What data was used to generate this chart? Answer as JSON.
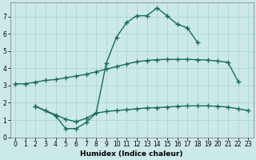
{
  "background_color": "#cce9e9",
  "grid_color": "#afd4d4",
  "line_color": "#1a6b5a",
  "xlabel": "Humidex (Indice chaleur)",
  "xlim": [
    -0.5,
    23.5
  ],
  "ylim": [
    0,
    7.8
  ],
  "yticks": [
    0,
    1,
    2,
    3,
    4,
    5,
    6,
    7
  ],
  "xticks": [
    0,
    1,
    2,
    3,
    4,
    5,
    6,
    7,
    8,
    9,
    10,
    11,
    12,
    13,
    14,
    15,
    16,
    17,
    18,
    19,
    20,
    21,
    22,
    23
  ],
  "curve1_x": [
    0,
    1,
    2,
    3,
    4,
    5,
    6,
    7,
    8,
    9,
    10,
    11,
    12,
    13,
    14,
    15,
    16,
    17,
    18,
    19,
    20,
    21,
    22
  ],
  "curve1_y": [
    3.1,
    3.1,
    3.2,
    3.3,
    3.35,
    3.45,
    3.55,
    3.65,
    3.8,
    3.95,
    4.1,
    4.25,
    4.38,
    4.45,
    4.5,
    4.52,
    4.52,
    4.52,
    4.5,
    4.48,
    4.42,
    4.35,
    3.25
  ],
  "curve2_x": [
    2,
    4,
    5,
    6,
    7,
    8,
    9,
    10,
    11,
    12,
    13,
    14,
    15,
    16,
    17,
    18
  ],
  "curve2_y": [
    1.8,
    1.25,
    0.5,
    0.5,
    0.85,
    1.4,
    4.3,
    5.8,
    6.65,
    7.05,
    7.05,
    7.5,
    7.05,
    6.55,
    6.35,
    5.5
  ],
  "curve3_x": [
    2,
    3,
    4,
    5,
    6,
    7,
    8,
    9,
    10,
    11,
    12,
    13,
    14,
    15,
    16,
    17,
    18,
    19,
    20,
    21,
    22,
    23
  ],
  "curve3_y": [
    1.8,
    1.55,
    1.3,
    1.05,
    0.9,
    1.1,
    1.4,
    1.5,
    1.55,
    1.6,
    1.65,
    1.7,
    1.72,
    1.75,
    1.8,
    1.82,
    1.82,
    1.82,
    1.8,
    1.75,
    1.65,
    1.55
  ],
  "marker_style": "+",
  "marker_size": 4,
  "line_width": 1.0
}
